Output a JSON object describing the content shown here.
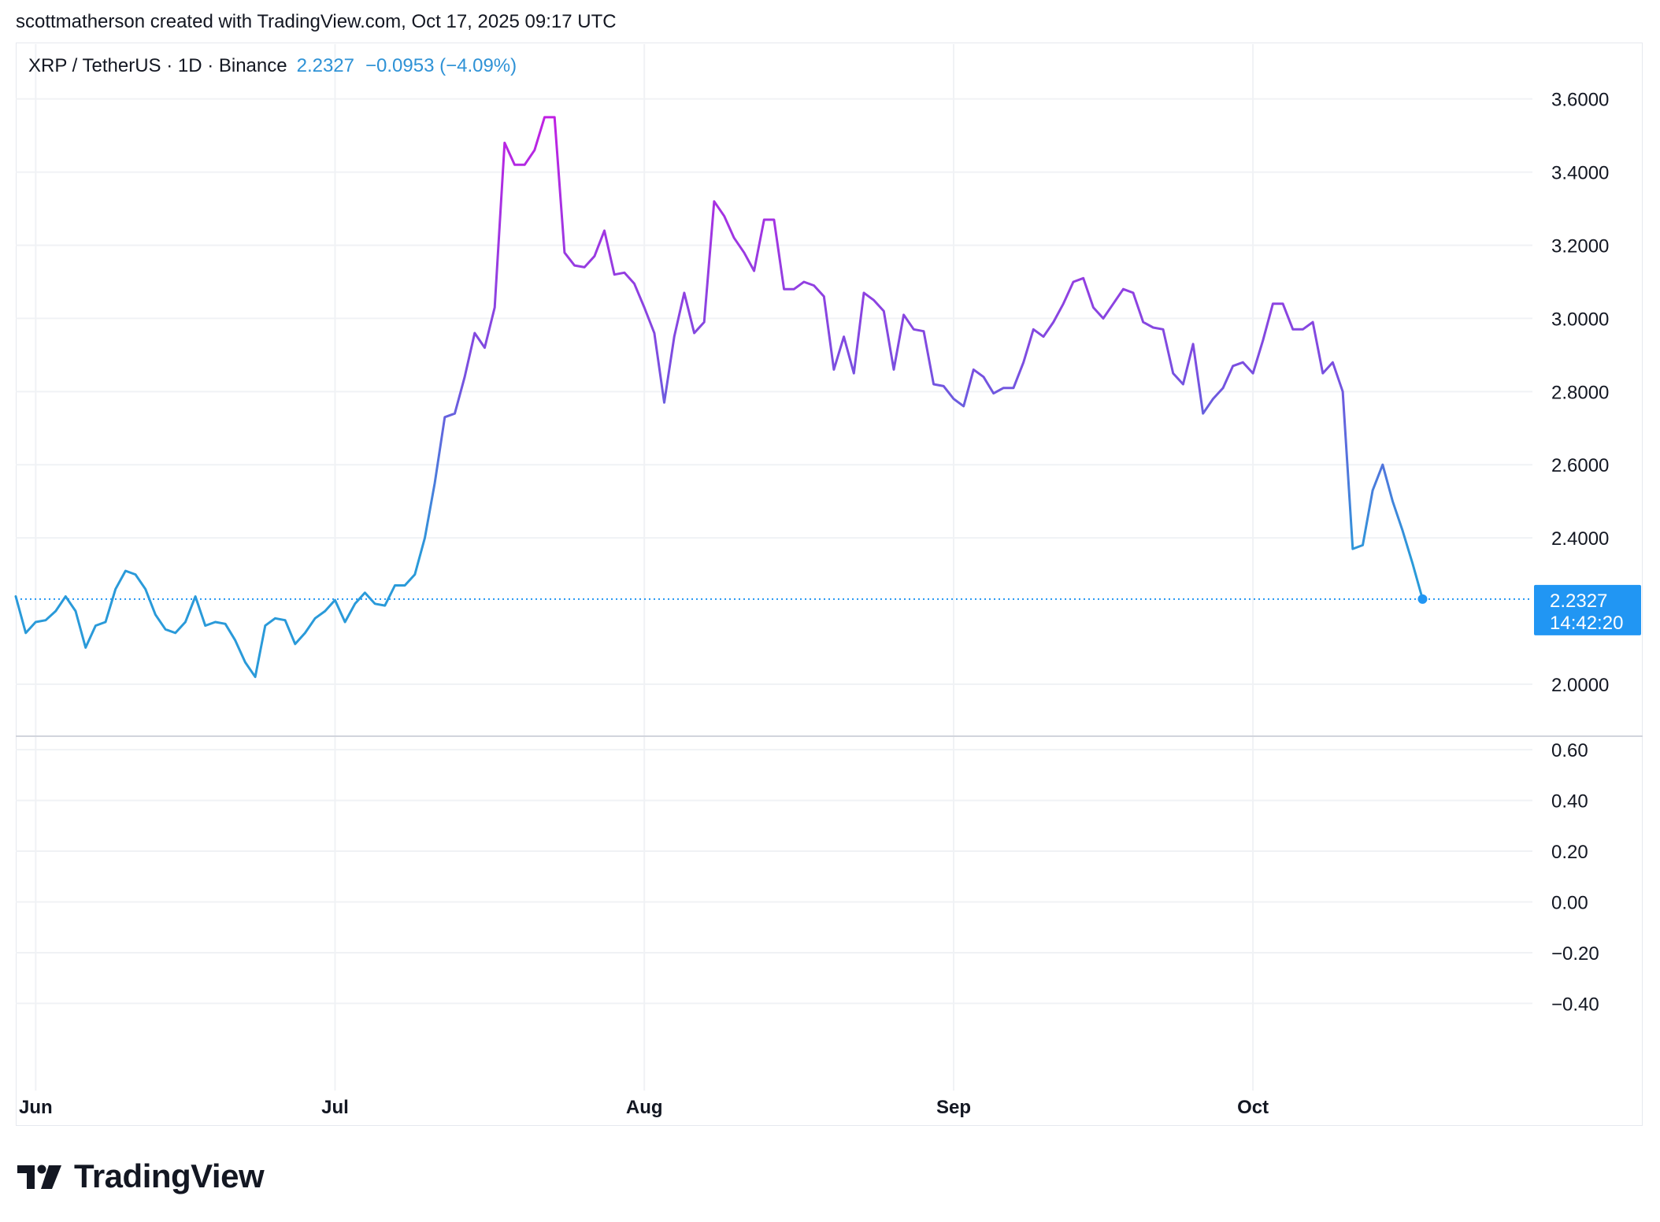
{
  "attribution": "scottmatherson created with TradingView.com, Oct 17, 2025 09:17 UTC",
  "legend": {
    "symbol": "XRP / TetherUS · 1D · Binance",
    "price": "2.2327",
    "change": "−0.0953 (−4.09%)"
  },
  "last_price": {
    "value": "2.2327",
    "countdown": "14:42:20"
  },
  "brand": "TradingView",
  "colors": {
    "line_low": "#2a9ad9",
    "line_high": "#c21fe3",
    "price_badge": "#2196f3",
    "grid": "#f0f2f5"
  },
  "chart_data": {
    "type": "line",
    "title": "",
    "x_labels": [
      "Jun",
      "Jul",
      "Aug",
      "Sep",
      "Oct"
    ],
    "x_start": "2025-05-30",
    "y_ticks": [
      "3.6000",
      "3.4000",
      "3.2000",
      "3.0000",
      "2.8000",
      "2.6000",
      "2.4000",
      "2.0000"
    ],
    "ylim": [
      1.86,
      3.75
    ],
    "grid": true,
    "series": [
      {
        "values": [
          2.24,
          2.14,
          2.17,
          2.175,
          2.2,
          2.24,
          2.2,
          2.1,
          2.16,
          2.17,
          2.26,
          2.31,
          2.3,
          2.26,
          2.19,
          2.15,
          2.14,
          2.17,
          2.24,
          2.16,
          2.17,
          2.165,
          2.12,
          2.06,
          2.02,
          2.16,
          2.18,
          2.175,
          2.11,
          2.14,
          2.18,
          2.2,
          2.23,
          2.17,
          2.22,
          2.25,
          2.22,
          2.215,
          2.27,
          2.27,
          2.3,
          2.4,
          2.55,
          2.73,
          2.74,
          2.84,
          2.96,
          2.92,
          3.03,
          3.48,
          3.42,
          3.42,
          3.46,
          3.55,
          3.55,
          3.18,
          3.145,
          3.14,
          3.17,
          3.24,
          3.12,
          3.125,
          3.095,
          3.03,
          2.96,
          2.77,
          2.95,
          3.07,
          2.96,
          2.99,
          3.32,
          3.28,
          3.22,
          3.18,
          3.13,
          3.27,
          3.27,
          3.08,
          3.08,
          3.1,
          3.09,
          3.06,
          2.86,
          2.95,
          2.85,
          3.07,
          3.05,
          3.02,
          2.86,
          3.01,
          2.97,
          2.965,
          2.82,
          2.815,
          2.78,
          2.76,
          2.86,
          2.84,
          2.795,
          2.81,
          2.81,
          2.88,
          2.97,
          2.95,
          2.99,
          3.04,
          3.1,
          3.11,
          3.03,
          3.0,
          3.04,
          3.08,
          3.07,
          2.99,
          2.975,
          2.97,
          2.85,
          2.82,
          2.93,
          2.74,
          2.78,
          2.81,
          2.87,
          2.88,
          2.85,
          2.94,
          3.04,
          3.04,
          2.97,
          2.97,
          2.99,
          2.85,
          2.88,
          2.8,
          2.37,
          2.38,
          2.53,
          2.6,
          2.5,
          2.42,
          2.33,
          2.2327
        ]
      }
    ],
    "indicator": {
      "y_ticks": [
        "0.60",
        "0.40",
        "0.20",
        "0.00",
        "−0.20",
        "−0.40"
      ],
      "ylim": [
        -0.65,
        0.65
      ],
      "values": []
    }
  }
}
